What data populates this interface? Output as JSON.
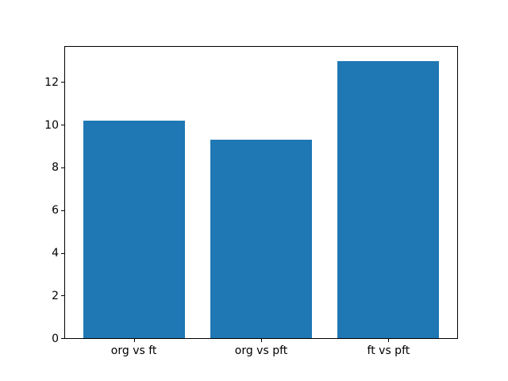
{
  "figure": {
    "background_color": "#ffffff",
    "frame_color": "#000000",
    "text_color": "#000000"
  },
  "chart_data": {
    "type": "bar",
    "categories": [
      "org vs ft",
      "org vs pft",
      "ft vs pft"
    ],
    "values": [
      10.2,
      9.3,
      13.0
    ],
    "title": "",
    "xlabel": "",
    "ylabel": "",
    "ylim": [
      0,
      13.65
    ],
    "yticks": [
      0,
      2,
      4,
      6,
      8,
      10,
      12
    ],
    "bar_color": "#1f77b4",
    "bar_width_fraction": 0.8,
    "grid": false,
    "legend_position": "none"
  }
}
